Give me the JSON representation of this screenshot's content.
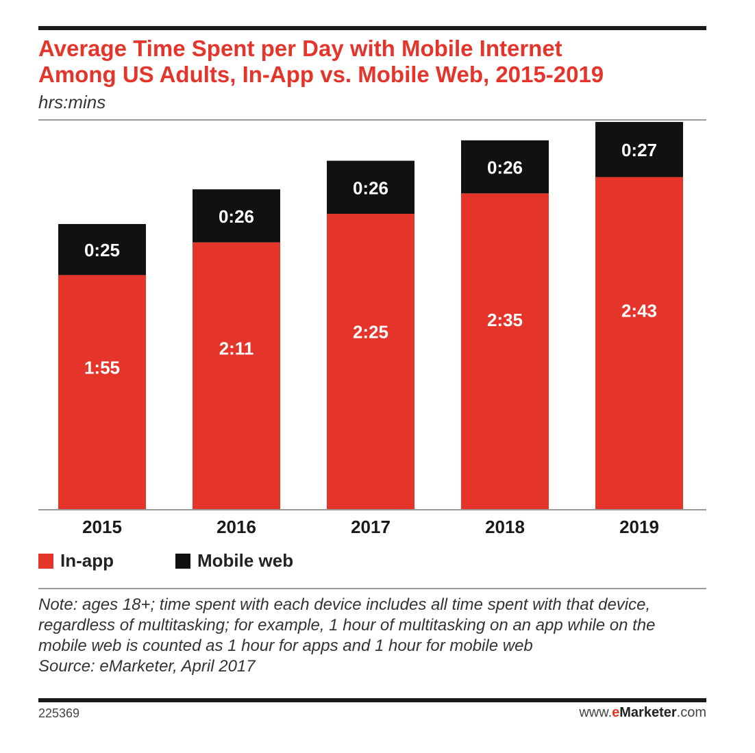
{
  "header": {
    "title_line1": "Average Time Spent per Day with Mobile Internet",
    "title_line2": "Among US Adults, In-App vs. Mobile Web, 2015-2019",
    "subtitle": "hrs:mins"
  },
  "chart_data": {
    "type": "bar",
    "stacked": true,
    "unit": "hrs:mins",
    "categories": [
      "2015",
      "2016",
      "2017",
      "2018",
      "2019"
    ],
    "series": [
      {
        "name": "In-app",
        "color": "#e5342a",
        "label_color": "#ffffff",
        "values": [
          "1:55",
          "2:11",
          "2:25",
          "2:35",
          "2:43"
        ],
        "minutes": [
          115,
          131,
          145,
          155,
          163
        ]
      },
      {
        "name": "Mobile web",
        "color": "#111111",
        "label_color": "#ffffff",
        "values": [
          "0:25",
          "0:26",
          "0:26",
          "0:26",
          "0:27"
        ],
        "minutes": [
          25,
          26,
          26,
          26,
          27
        ]
      }
    ],
    "legend_position": "bottom-left",
    "grid": false,
    "ylim_minutes": [
      0,
      190
    ]
  },
  "legend": {
    "items": [
      {
        "label": "In-app",
        "color": "#e5342a"
      },
      {
        "label": "Mobile web",
        "color": "#111111"
      }
    ]
  },
  "notes": {
    "note": "Note: ages 18+; time spent with each device includes all time spent with that device, regardless of multitasking; for example, 1 hour of multitasking on an app while on the mobile web is counted as 1 hour for apps and 1 hour for mobile web",
    "source": "Source: eMarketer, April 2017"
  },
  "footer": {
    "id": "225369",
    "brand_prefix": "www.",
    "brand_accent": "e",
    "brand_name": "Marketer",
    "brand_suffix": ".com"
  }
}
